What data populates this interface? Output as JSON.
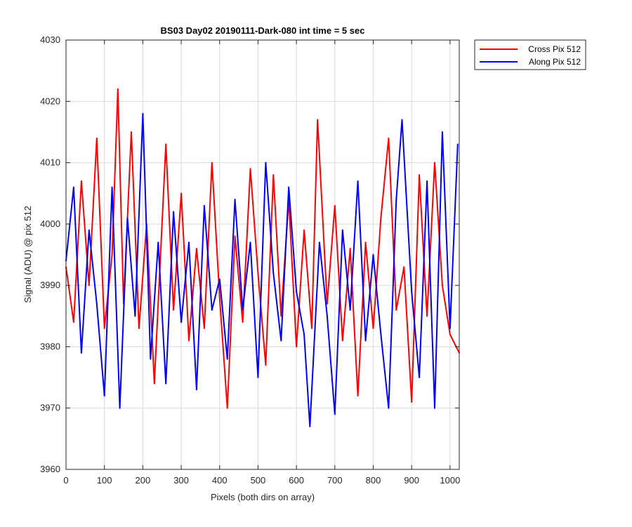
{
  "chart_data": {
    "type": "line",
    "title": "BS03 Day02 20190111-Dark-080 int time = 5 sec",
    "xlabel": "Pixels (both dirs on array)",
    "ylabel": "Signal (ADU) @ pix 512",
    "xlim": [
      0,
      1024
    ],
    "ylim": [
      3960,
      4030
    ],
    "xticks": [
      0,
      100,
      200,
      300,
      400,
      500,
      600,
      700,
      800,
      900,
      1000
    ],
    "yticks": [
      3960,
      3970,
      3980,
      3990,
      4000,
      4010,
      4020,
      4030
    ],
    "grid": true,
    "legend_position": "outside-top-right",
    "series": [
      {
        "name": "Cross Pix 512",
        "color": "#ff0000",
        "x": [
          0,
          20,
          40,
          60,
          80,
          100,
          120,
          135,
          150,
          170,
          190,
          210,
          230,
          260,
          280,
          300,
          320,
          340,
          360,
          380,
          400,
          420,
          440,
          460,
          480,
          500,
          520,
          540,
          560,
          580,
          600,
          620,
          640,
          655,
          680,
          700,
          720,
          740,
          760,
          780,
          800,
          820,
          840,
          860,
          880,
          900,
          920,
          940,
          960,
          980,
          1000,
          1024
        ],
        "values": [
          3993,
          3984,
          4007,
          3990,
          4014,
          3983,
          3995,
          4022,
          3987,
          4015,
          3983,
          4000,
          3974,
          4013,
          3986,
          4005,
          3981,
          3996,
          3983,
          4010,
          3988,
          3970,
          3998,
          3984,
          4009,
          3992,
          3977,
          4008,
          3985,
          4004,
          3980,
          3999,
          3983,
          4017,
          3987,
          4003,
          3981,
          3996,
          3972,
          3997,
          3983,
          4001,
          4014,
          3986,
          3993,
          3971,
          4008,
          3985,
          4010,
          3990,
          3982,
          3979
        ]
      },
      {
        "name": "Along Pix 512",
        "color": "#0000ff",
        "x": [
          0,
          20,
          40,
          60,
          80,
          100,
          120,
          140,
          160,
          180,
          200,
          220,
          240,
          260,
          280,
          300,
          320,
          340,
          360,
          380,
          400,
          420,
          440,
          460,
          480,
          500,
          520,
          540,
          560,
          580,
          600,
          620,
          635,
          660,
          680,
          700,
          720,
          740,
          760,
          780,
          800,
          820,
          840,
          860,
          875,
          900,
          920,
          940,
          960,
          980,
          1000,
          1020
        ],
        "values": [
          3994,
          4006,
          3979,
          3999,
          3987,
          3972,
          4006,
          3970,
          4001,
          3985,
          4018,
          3978,
          3997,
          3974,
          4002,
          3984,
          3997,
          3973,
          4003,
          3986,
          3991,
          3978,
          4004,
          3986,
          3997,
          3975,
          4010,
          3992,
          3981,
          4006,
          3989,
          3982,
          3967,
          3997,
          3985,
          3969,
          3999,
          3986,
          4007,
          3981,
          3995,
          3982,
          3970,
          4004,
          4017,
          3989,
          3975,
          4007,
          3970,
          4015,
          3983,
          4013
        ]
      }
    ]
  }
}
